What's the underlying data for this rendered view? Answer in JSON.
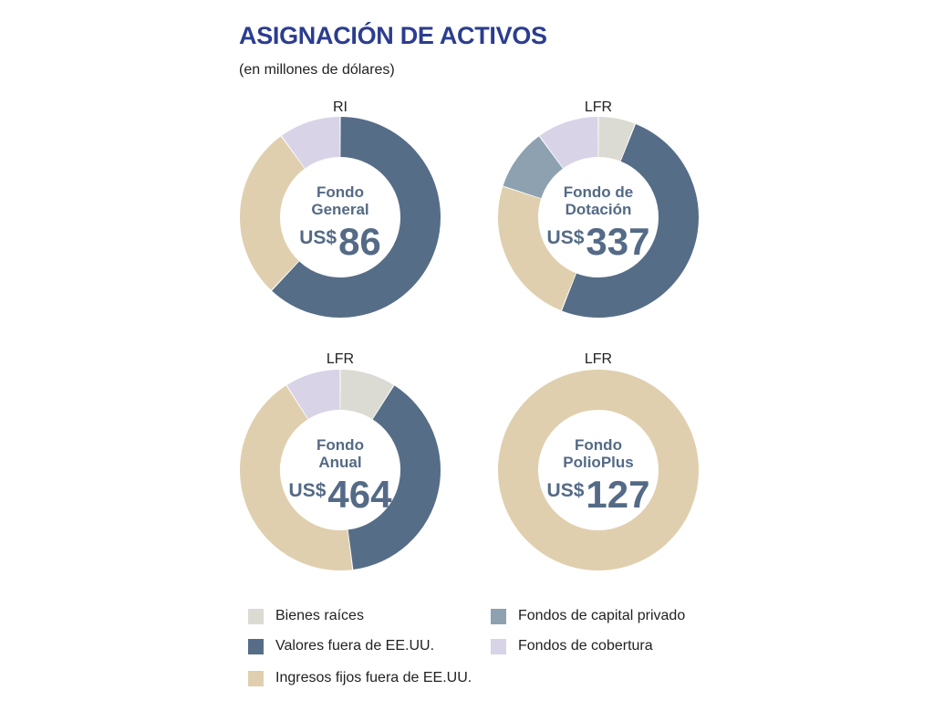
{
  "header": {
    "title": "ASIGNACIÓN DE ACTIVOS",
    "subtitle": "(en millones de dólares)"
  },
  "legend": [
    {
      "key": "bienes",
      "label": "Bienes raíces",
      "color": "#dcdbd3"
    },
    {
      "key": "valores",
      "label": "Valores fuera de EE.UU.",
      "color": "#566d87"
    },
    {
      "key": "ingresos",
      "label": "Ingresos fijos fuera de EE.UU.",
      "color": "#e0cfae"
    },
    {
      "key": "capital",
      "label": "Fondos de capital privado",
      "color": "#8da1b1"
    },
    {
      "key": "cobertura",
      "label": "Fondos de cobertura",
      "color": "#d8d3e6"
    }
  ],
  "chart_data": [
    {
      "type": "pie",
      "top_label": "RI",
      "name_line1": "Fondo",
      "name_line2": "General",
      "currency": "US$",
      "total": "86",
      "slices": [
        {
          "key": "valores",
          "value": 62
        },
        {
          "key": "ingresos",
          "value": 28
        },
        {
          "key": "cobertura",
          "value": 10
        }
      ]
    },
    {
      "type": "pie",
      "top_label": "LFR",
      "name_line1": "Fondo de",
      "name_line2": "Dotación",
      "currency": "US$",
      "total": "337",
      "slices": [
        {
          "key": "bienes",
          "value": 6
        },
        {
          "key": "valores",
          "value": 50
        },
        {
          "key": "ingresos",
          "value": 24
        },
        {
          "key": "capital",
          "value": 10
        },
        {
          "key": "cobertura",
          "value": 10
        }
      ]
    },
    {
      "type": "pie",
      "top_label": "LFR",
      "name_line1": "Fondo",
      "name_line2": "Anual",
      "currency": "US$",
      "total": "464",
      "slices": [
        {
          "key": "bienes",
          "value": 9
        },
        {
          "key": "valores",
          "value": 39
        },
        {
          "key": "ingresos",
          "value": 43
        },
        {
          "key": "cobertura",
          "value": 9
        }
      ]
    },
    {
      "type": "pie",
      "top_label": "LFR",
      "name_line1": "Fondo",
      "name_line2": "PolioPlus",
      "currency": "US$",
      "total": "127",
      "slices": [
        {
          "key": "ingresos",
          "value": 100
        }
      ]
    }
  ]
}
